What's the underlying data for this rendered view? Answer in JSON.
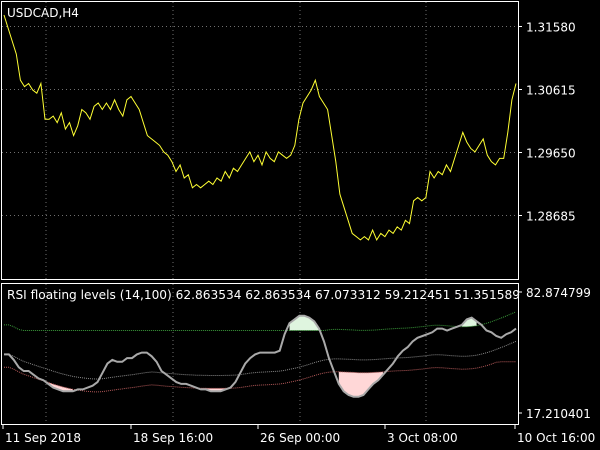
{
  "colors": {
    "background": "#000000",
    "frame": "#ffffff",
    "grid": "#6f6f6f",
    "price_line": "#ffff33",
    "rsi_line": "#a9a9a9",
    "upper_level": "#3a9a3a",
    "lower_level": "#b65a5a",
    "mid_level": "#8a8a8a",
    "oversold_fill": "#ffd7d7",
    "overbought_fill": "#dff5df"
  },
  "main": {
    "title": "USDCAD,H4",
    "y_ticks": [
      "1.31580",
      "1.30615",
      "1.29650",
      "1.28685"
    ]
  },
  "indicator": {
    "label": "RSI floating levels (14,100) 62.863534 62.863534 67.073312 59.212451 51.351589",
    "top_value": "82.874799",
    "bottom_value": "17.210401"
  },
  "x_ticks": [
    "11 Sep 2018",
    "18 Sep 16:00",
    "26 Sep 00:00",
    "3 Oct 08:00",
    "10 Oct 16:00"
  ],
  "chart_data": [
    {
      "type": "line",
      "title": "USDCAD,H4",
      "ylim": [
        1.277,
        1.3195
      ],
      "y_ticks": [
        1.3158,
        1.30615,
        1.2965,
        1.28685
      ],
      "x_ticks": [
        "11 Sep 2018",
        "18 Sep 16:00",
        "26 Sep 00:00",
        "3 Oct 08:00",
        "10 Oct 16:00"
      ],
      "grid": true,
      "series": [
        {
          "values": [
            1.3175,
            1.3155,
            1.3135,
            1.3115,
            1.3075,
            1.3065,
            1.307,
            1.306,
            1.3055,
            1.307,
            1.3015,
            1.3015,
            1.302,
            1.301,
            1.3025,
            1.3,
            1.301,
            1.299,
            1.3005,
            1.303,
            1.3025,
            1.3015,
            1.3035,
            1.304,
            1.303,
            1.304,
            1.303,
            1.3045,
            1.303,
            1.302,
            1.3045,
            1.305,
            1.304,
            1.303,
            1.301,
            1.299,
            1.2985,
            1.298,
            1.2975,
            1.2965,
            1.296,
            1.295,
            1.2935,
            1.2945,
            1.2925,
            1.293,
            1.291,
            1.2915,
            1.291,
            1.2915,
            1.292,
            1.2915,
            1.2925,
            1.292,
            1.2935,
            1.2925,
            1.294,
            1.2935,
            1.2945,
            1.2955,
            1.2965,
            1.295,
            1.296,
            1.2945,
            1.2965,
            1.2955,
            1.295,
            1.2965,
            1.296,
            1.2955,
            1.296,
            1.2975,
            1.3015,
            1.304,
            1.305,
            1.306,
            1.3075,
            1.305,
            1.304,
            1.303,
            1.299,
            1.295,
            1.29,
            1.288,
            1.286,
            1.284,
            1.2835,
            1.283,
            1.2835,
            1.283,
            1.2845,
            1.283,
            1.284,
            1.2835,
            1.2845,
            1.284,
            1.285,
            1.2845,
            1.286,
            1.2855,
            1.289,
            1.2895,
            1.289,
            1.2895,
            1.2935,
            1.2925,
            1.2935,
            1.293,
            1.2945,
            1.2935,
            1.2955,
            1.2975,
            1.2995,
            1.298,
            1.297,
            1.2965,
            1.2975,
            1.2985,
            1.296,
            1.295,
            1.2945,
            1.2955,
            1.2955,
            1.2995,
            1.3045,
            1.307
          ]
        }
      ]
    },
    {
      "type": "line",
      "title": "RSI floating levels (14,100) 62.863534 62.863534 67.073312 59.212451 51.351589",
      "ylim": [
        17.210401,
        82.874799
      ],
      "grid": true,
      "series": [
        {
          "values": [
            49,
            49,
            46,
            42,
            40,
            40,
            38,
            36,
            35,
            33,
            31,
            30,
            29,
            29,
            29,
            30,
            30,
            31,
            32,
            34,
            39,
            44,
            46,
            45,
            45,
            47,
            47,
            49,
            50,
            50,
            48,
            45,
            40,
            38,
            36,
            34,
            33,
            33,
            32,
            31,
            30,
            30,
            29,
            29,
            29,
            30,
            31,
            34,
            39,
            44,
            47,
            49,
            50,
            50,
            50,
            50,
            51,
            60,
            66,
            68,
            70,
            70,
            69,
            67,
            63,
            56,
            47,
            40,
            33,
            29,
            27,
            26,
            26,
            27,
            30,
            33,
            35,
            38,
            41,
            44,
            48,
            51,
            53,
            56,
            58,
            59,
            60,
            61,
            63,
            63,
            62,
            63,
            64,
            65,
            68,
            69,
            67,
            65,
            62,
            61,
            59,
            58,
            60,
            61,
            63
          ]
        }
      ]
    }
  ]
}
